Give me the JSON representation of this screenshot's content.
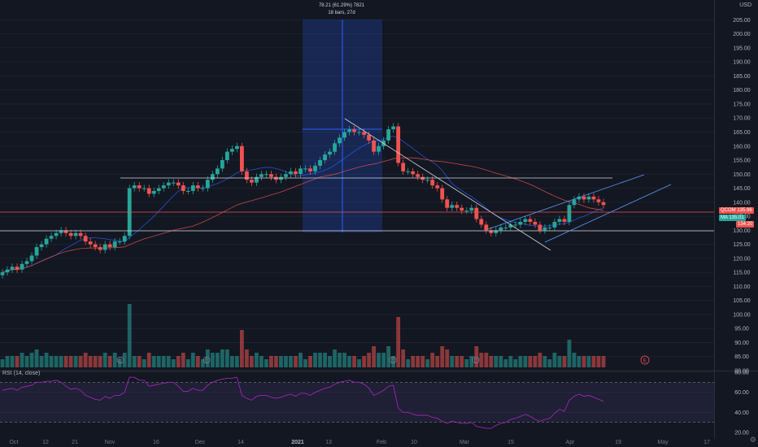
{
  "currency": "USD",
  "measure": {
    "line1": "78.21 (61.29%) 7821",
    "line2": "18 bars, 27d"
  },
  "rsi_label": "RSI (14, close)",
  "price_tags": {
    "symbol_label": "QCOM",
    "symbol_price": "135.96",
    "ma_label": "MA",
    "ma_price": "135.01",
    "last_price": "134.20"
  },
  "colors": {
    "up": "#26a69a",
    "down": "#ef5350",
    "ma_fast": "#2962ff",
    "ma_slow": "#ef5350",
    "rsi": "#9c27b0",
    "box": "#2962ff"
  },
  "events": [
    "E",
    "E",
    "E",
    "E"
  ],
  "chart_data": [
    {
      "type": "candlestick",
      "title": "",
      "y_ticks": [
        "205.00",
        "200.00",
        "195.00",
        "190.00",
        "185.00",
        "180.00",
        "175.00",
        "170.00",
        "165.00",
        "160.00",
        "155.00",
        "150.00",
        "145.00",
        "140.00",
        "135.00",
        "130.00",
        "125.00",
        "120.00",
        "115.00",
        "110.00",
        "105.00",
        "100.00",
        "95.00",
        "90.00",
        "85.00",
        "80.00"
      ],
      "x_ticks": [
        "Oct",
        "12",
        "21",
        "Nov",
        "16",
        "Dec",
        "14",
        "2021",
        "13",
        "Feb",
        "10",
        "Mar",
        "15",
        "Apr",
        "19",
        "May",
        "17"
      ],
      "ylim": [
        80,
        208
      ],
      "series": [
        {
          "name": "",
          "closes": [
            115,
            116,
            117,
            116,
            118,
            119,
            121,
            124,
            125,
            127,
            128,
            129,
            130,
            129,
            128,
            129,
            128,
            126,
            125,
            124,
            123,
            125,
            124,
            126,
            126,
            128,
            145,
            146,
            145,
            145,
            143,
            144,
            145,
            146,
            147,
            147,
            146,
            144,
            144,
            146,
            145,
            145,
            148,
            150,
            152,
            155,
            158,
            159,
            160,
            151,
            148,
            147,
            149,
            150,
            150,
            149,
            148,
            149,
            150,
            151,
            150,
            152,
            152,
            151,
            153,
            155,
            157,
            158,
            161,
            163,
            165,
            166,
            165,
            165,
            164,
            162,
            158,
            160,
            162,
            166,
            167,
            154,
            151,
            151,
            150,
            149,
            148,
            148,
            146,
            145,
            141,
            138,
            139,
            138,
            137,
            137,
            138,
            134,
            132,
            130,
            129,
            130,
            131,
            131,
            132,
            132,
            133,
            134,
            133,
            132,
            130,
            131,
            131,
            133,
            134,
            133,
            139,
            141,
            142,
            141,
            142,
            141,
            140,
            139
          ]
        }
      ]
    },
    {
      "type": "line",
      "title": "RSI (14, close)",
      "y_ticks": [
        "80.00",
        "60.00",
        "40.00",
        "20.00"
      ],
      "ylim": [
        20,
        80
      ],
      "series": [
        {
          "name": "",
          "values": [
            62,
            63,
            64,
            62,
            65,
            66,
            67,
            70,
            70,
            71,
            71,
            72,
            70,
            66,
            63,
            64,
            62,
            57,
            55,
            53,
            52,
            56,
            54,
            57,
            57,
            60,
            75,
            75,
            72,
            72,
            66,
            67,
            68,
            69,
            70,
            70,
            66,
            61,
            61,
            64,
            62,
            62,
            67,
            70,
            72,
            73,
            74,
            74,
            75,
            57,
            54,
            52,
            56,
            57,
            57,
            55,
            54,
            55,
            57,
            58,
            56,
            59,
            59,
            57,
            60,
            62,
            64,
            65,
            68,
            70,
            71,
            72,
            70,
            70,
            68,
            64,
            57,
            59,
            62,
            66,
            67,
            44,
            40,
            40,
            38,
            37,
            37,
            37,
            35,
            34,
            31,
            29,
            31,
            30,
            29,
            29,
            30,
            26,
            25,
            24,
            24,
            27,
            29,
            30,
            33,
            34,
            36,
            38,
            36,
            33,
            31,
            33,
            34,
            39,
            43,
            41,
            52,
            56,
            58,
            56,
            57,
            55,
            53,
            51
          ]
        }
      ]
    }
  ]
}
